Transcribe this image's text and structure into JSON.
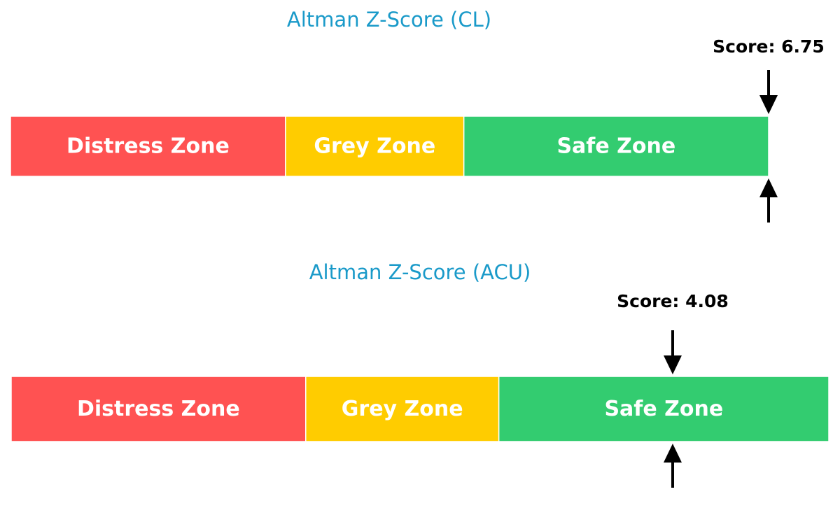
{
  "chart_data": [
    {
      "type": "bar",
      "title": "Altman Z-Score (CL)",
      "score": 6.75,
      "score_label": "Score: 6.75",
      "xlim": [
        -0.05,
        5.05
      ],
      "zones": [
        {
          "label": "Distress Zone",
          "from": -0.05,
          "to": 1.8,
          "color": "#ff5252"
        },
        {
          "label": "Grey Zone",
          "from": 1.8,
          "to": 3.0,
          "color": "#ffcc00"
        },
        {
          "label": "Safe Zone",
          "from": 3.0,
          "to": 5.05,
          "color": "#33cc70"
        }
      ]
    },
    {
      "type": "bar",
      "title": "Altman Z-Score (ACU)",
      "score": 4.08,
      "score_label": "Score: 4.08",
      "xlim": [
        -0.03,
        5.05
      ],
      "zones": [
        {
          "label": "Distress Zone",
          "from": -0.03,
          "to": 1.8,
          "color": "#ff5252"
        },
        {
          "label": "Grey Zone",
          "from": 1.8,
          "to": 3.0,
          "color": "#ffcc00"
        },
        {
          "label": "Safe Zone",
          "from": 3.0,
          "to": 5.05,
          "color": "#33cc70"
        }
      ]
    }
  ],
  "colors": {
    "title": "#1a9ac9",
    "arrow": "#000000"
  }
}
